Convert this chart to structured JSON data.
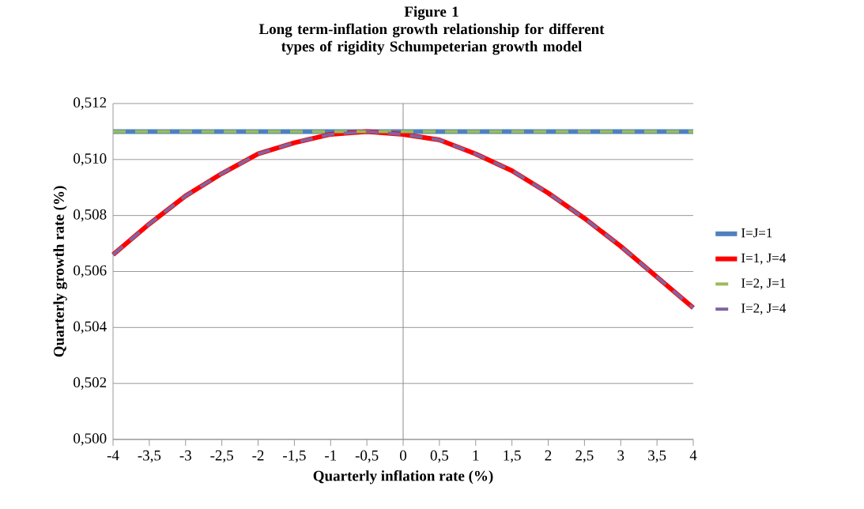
{
  "chart_data": {
    "type": "line",
    "title": "Figure 1",
    "subtitle": "Long term-inflation growth relationship for different types of rigidity Schumpeterian growth model",
    "xlabel": "Quarterly inflation rate (%)",
    "ylabel": "Quarterly growth rate (%)",
    "x": [
      -4,
      -3.5,
      -3,
      -2.5,
      -2,
      -1.5,
      -1,
      -0.5,
      0,
      0.5,
      1,
      1.5,
      2,
      2.5,
      3,
      3.5,
      4
    ],
    "series": [
      {
        "name": "I=J=1",
        "color": "#4f81bd",
        "line_style": "solid",
        "values": [
          0.511,
          0.511,
          0.511,
          0.511,
          0.511,
          0.511,
          0.511,
          0.511,
          0.511,
          0.511,
          0.511,
          0.511,
          0.511,
          0.511,
          0.511,
          0.511,
          0.511
        ]
      },
      {
        "name": "I=1, J=4",
        "color": "#ff0000",
        "line_style": "solid",
        "values": [
          0.5066,
          0.5077,
          0.5087,
          0.5095,
          0.5102,
          0.5106,
          0.5109,
          0.511,
          0.5109,
          0.5107,
          0.5102,
          0.5096,
          0.5088,
          0.5079,
          0.5069,
          0.5058,
          0.5047
        ]
      },
      {
        "name": "I=2, J=1",
        "color": "#9bbb59",
        "line_style": "dashed",
        "values": [
          0.511,
          0.511,
          0.511,
          0.511,
          0.511,
          0.511,
          0.511,
          0.511,
          0.511,
          0.511,
          0.511,
          0.511,
          0.511,
          0.511,
          0.511,
          0.511,
          0.511
        ]
      },
      {
        "name": "I=2, J=4",
        "color": "#8064a2",
        "line_style": "dashed",
        "values": [
          0.5066,
          0.5077,
          0.5087,
          0.5095,
          0.5102,
          0.5106,
          0.5109,
          0.511,
          0.5109,
          0.5107,
          0.5102,
          0.5096,
          0.5088,
          0.5079,
          0.5069,
          0.5058,
          0.5047
        ]
      }
    ],
    "xlim": [
      -4,
      4
    ],
    "xticks": [
      -4,
      {
        "value": -3.5,
        "label": "-3,5"
      },
      -3,
      {
        "value": -2.5,
        "label": "-2,5"
      },
      -2,
      {
        "value": -1.5,
        "label": "-1,5"
      },
      -1,
      {
        "value": -0.5,
        "label": "-0,5"
      },
      0,
      {
        "value": 0.5,
        "label": "0,5"
      },
      1,
      {
        "value": 1.5,
        "label": "1,5"
      },
      2,
      {
        "value": 2.5,
        "label": "2,5"
      },
      3,
      {
        "value": 3.5,
        "label": "3,5"
      },
      4
    ],
    "ylim": [
      0.5,
      0.512
    ],
    "yticks": [
      {
        "value": 0.5,
        "label": "0,500"
      },
      {
        "value": 0.502,
        "label": "0,502"
      },
      {
        "value": 0.504,
        "label": "0,504"
      },
      {
        "value": 0.506,
        "label": "0,506"
      },
      {
        "value": 0.508,
        "label": "0,508"
      },
      {
        "value": 0.51,
        "label": "0,510"
      },
      {
        "value": 0.512,
        "label": "0,512"
      }
    ],
    "ref_lines": [
      {
        "axis": "x",
        "value": 0,
        "color": "#8c8c8c"
      }
    ],
    "grid": "y",
    "legend": "right",
    "marker": "none"
  }
}
